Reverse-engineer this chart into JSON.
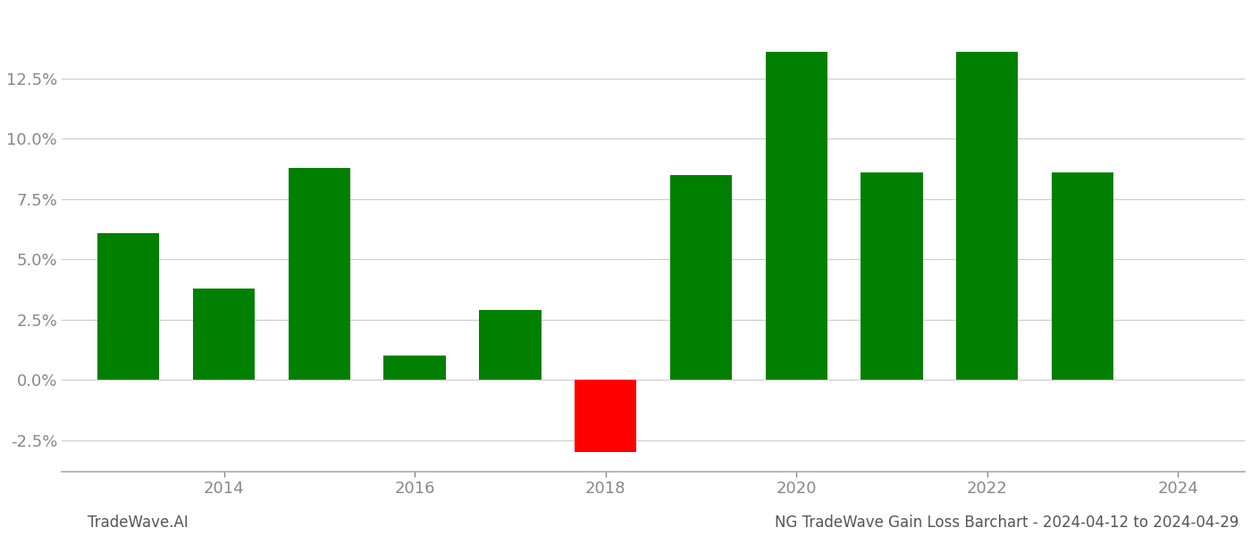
{
  "years": [
    2013,
    2014,
    2015,
    2016,
    2017,
    2018,
    2019,
    2020,
    2021,
    2022,
    2023
  ],
  "values": [
    0.061,
    0.038,
    0.088,
    0.01,
    0.029,
    -0.03,
    0.085,
    0.136,
    0.086,
    0.136,
    0.086
  ],
  "bar_colors": [
    "#008000",
    "#008000",
    "#008000",
    "#008000",
    "#008000",
    "#ff0000",
    "#008000",
    "#008000",
    "#008000",
    "#008000",
    "#008000"
  ],
  "title": "NG TradeWave Gain Loss Barchart - 2024-04-12 to 2024-04-29",
  "watermark": "TradeWave.AI",
  "ylim": [
    -0.038,
    0.155
  ],
  "yticks": [
    -0.025,
    0.0,
    0.025,
    0.05,
    0.075,
    0.1,
    0.125
  ],
  "xticks": [
    2014,
    2016,
    2018,
    2020,
    2022,
    2024
  ],
  "xlim": [
    2012.3,
    2024.7
  ],
  "background_color": "#ffffff",
  "grid_color": "#cccccc",
  "bar_width": 0.65,
  "title_fontsize": 12,
  "watermark_fontsize": 12,
  "tick_label_color": "#888888",
  "spine_color": "#aaaaaa"
}
